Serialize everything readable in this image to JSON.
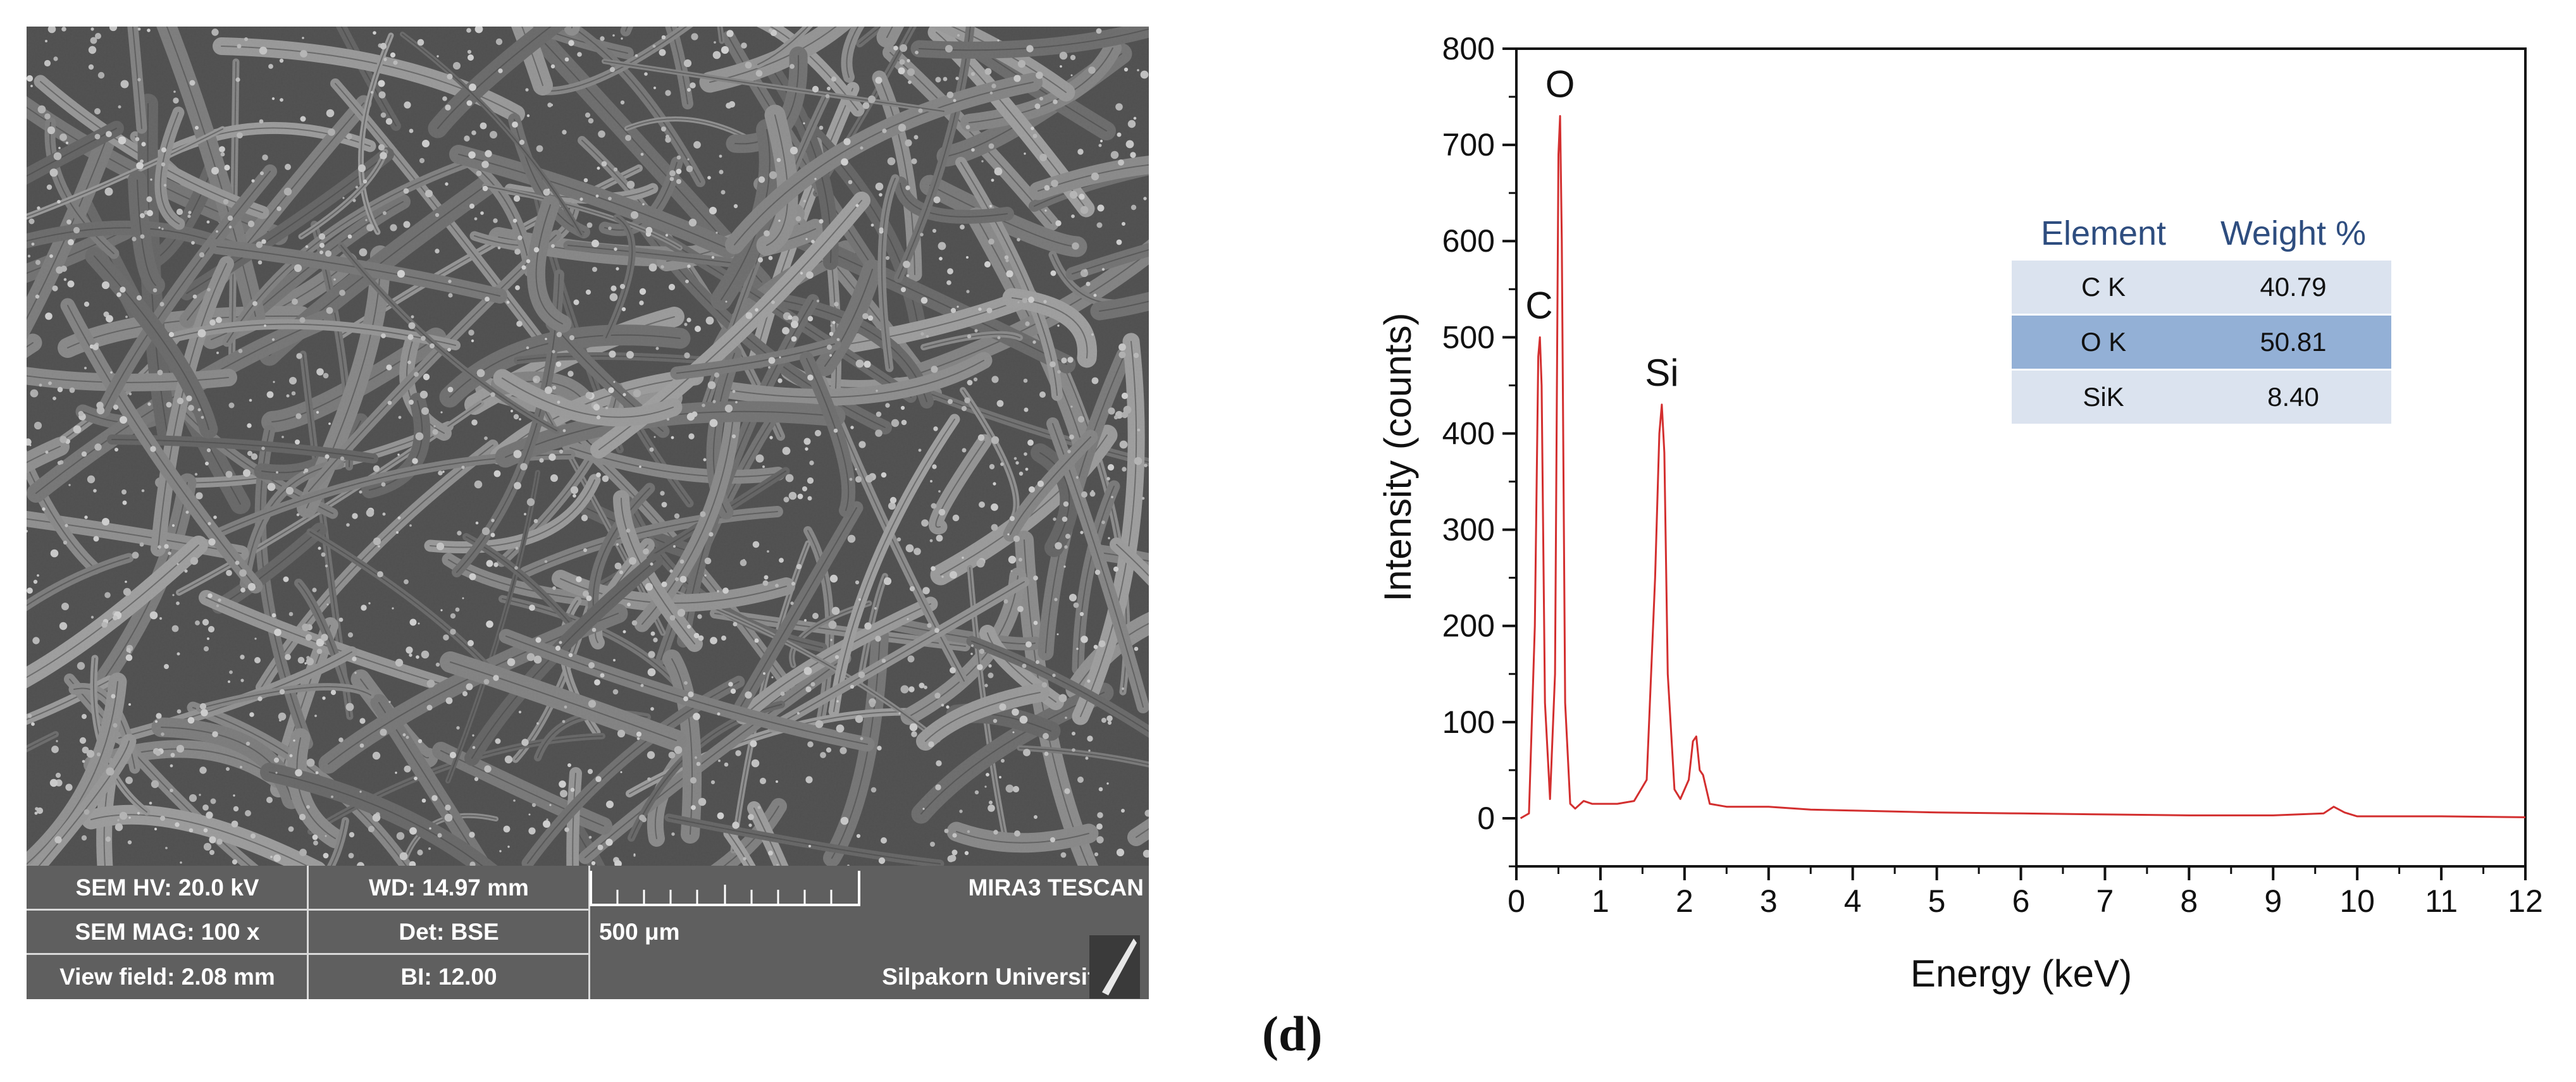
{
  "sem": {
    "info": {
      "hv": "SEM HV: 20.0 kV",
      "wd": "WD: 14.97 mm",
      "mag": "SEM MAG: 100 x",
      "det": "Det: BSE",
      "view_field": "View field: 2.08 mm",
      "bi": "BI: 12.00",
      "scale": "500 μm",
      "instrument": "MIRA3 TESCAN",
      "institution": "Silpakorn University"
    }
  },
  "chart_data": {
    "type": "line",
    "xlabel": "Energy (keV)",
    "ylabel": "Intensity (counts)",
    "xlim": [
      0,
      12
    ],
    "ylim": [
      -50,
      800
    ],
    "xticks": [
      "0",
      "1",
      "2",
      "3",
      "4",
      "5",
      "6",
      "7",
      "8",
      "9",
      "10",
      "11",
      "12"
    ],
    "yticks": [
      "0",
      "100",
      "200",
      "300",
      "400",
      "500",
      "600",
      "700",
      "800"
    ],
    "grid": false,
    "series": [
      {
        "color": "#d32f2f",
        "x": [
          0.05,
          0.15,
          0.22,
          0.26,
          0.28,
          0.3,
          0.34,
          0.4,
          0.46,
          0.5,
          0.52,
          0.54,
          0.58,
          0.64,
          0.7,
          0.8,
          0.9,
          1.0,
          1.2,
          1.4,
          1.55,
          1.65,
          1.7,
          1.73,
          1.76,
          1.8,
          1.88,
          1.95,
          2.05,
          2.1,
          2.14,
          2.18,
          2.22,
          2.3,
          2.5,
          3.0,
          3.5,
          4.0,
          5.0,
          6.0,
          7.0,
          8.0,
          9.0,
          9.6,
          9.72,
          9.85,
          10.0,
          11.0,
          12.0
        ],
        "y": [
          0,
          5,
          200,
          480,
          500,
          450,
          120,
          20,
          150,
          690,
          730,
          600,
          120,
          15,
          10,
          18,
          15,
          15,
          15,
          18,
          40,
          250,
          400,
          430,
          380,
          150,
          30,
          20,
          40,
          80,
          85,
          50,
          45,
          15,
          12,
          12,
          9,
          8,
          6,
          5,
          4,
          3,
          3,
          5,
          12,
          6,
          2,
          2,
          1
        ]
      }
    ],
    "peak_labels": [
      {
        "text": "C",
        "x": 0.27,
        "y": 500
      },
      {
        "text": "O",
        "x": 0.52,
        "y": 730
      },
      {
        "text": "Si",
        "x": 1.73,
        "y": 430
      }
    ]
  },
  "table": {
    "headers": [
      "Element",
      "Weight %"
    ],
    "rows": [
      {
        "element": "C K",
        "weight": "40.79"
      },
      {
        "element": "O K",
        "weight": "50.81"
      },
      {
        "element": "SiK",
        "weight": "8.40"
      }
    ],
    "row_colors": [
      "#dbe3ef",
      "#93b0d6",
      "#dbe3ef"
    ]
  },
  "panel_label": "(d)"
}
